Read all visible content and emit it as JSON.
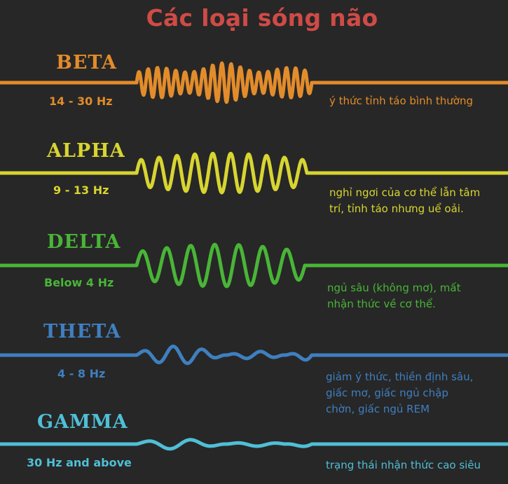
{
  "title": "Các loại sóng não",
  "colors": {
    "background": "#272727",
    "title": "#cf4b46",
    "beta": "#e38c2b",
    "alpha": "#d7d531",
    "delta": "#49b537",
    "theta": "#3f7fc0",
    "gamma": "#4fbfd6"
  },
  "bands": [
    {
      "key": "beta",
      "name": "BETA",
      "frequency": "14 - 30 Hz",
      "description": [
        "ý thức tỉnh táo bình thường"
      ],
      "color": "#e38c2b"
    },
    {
      "key": "alpha",
      "name": "ALPHA",
      "frequency": "9 - 13 Hz",
      "description": [
        "nghỉ ngơi của cơ thể lẫn tâm",
        "trí, tỉnh táo nhưng uể oải."
      ],
      "color": "#d7d531"
    },
    {
      "key": "delta",
      "name": "DELTA",
      "frequency": "Below 4 Hz",
      "description": [
        "ngủ sâu (không mơ), mất",
        "nhận thức về cơ thể."
      ],
      "color": "#49b537"
    },
    {
      "key": "theta",
      "name": "THETA",
      "frequency": "4 - 8 Hz",
      "description": [
        "giảm ý thức, thiền định sâu,",
        "giấc mơ, giấc ngủ chập",
        "chờn, giấc ngủ REM"
      ],
      "color": "#3f7fc0"
    },
    {
      "key": "gamma",
      "name": "GAMMA",
      "frequency": "30 Hz and above",
      "description": [
        "trạng thái nhận thức cao siêu"
      ],
      "color": "#4fbfd6"
    }
  ]
}
